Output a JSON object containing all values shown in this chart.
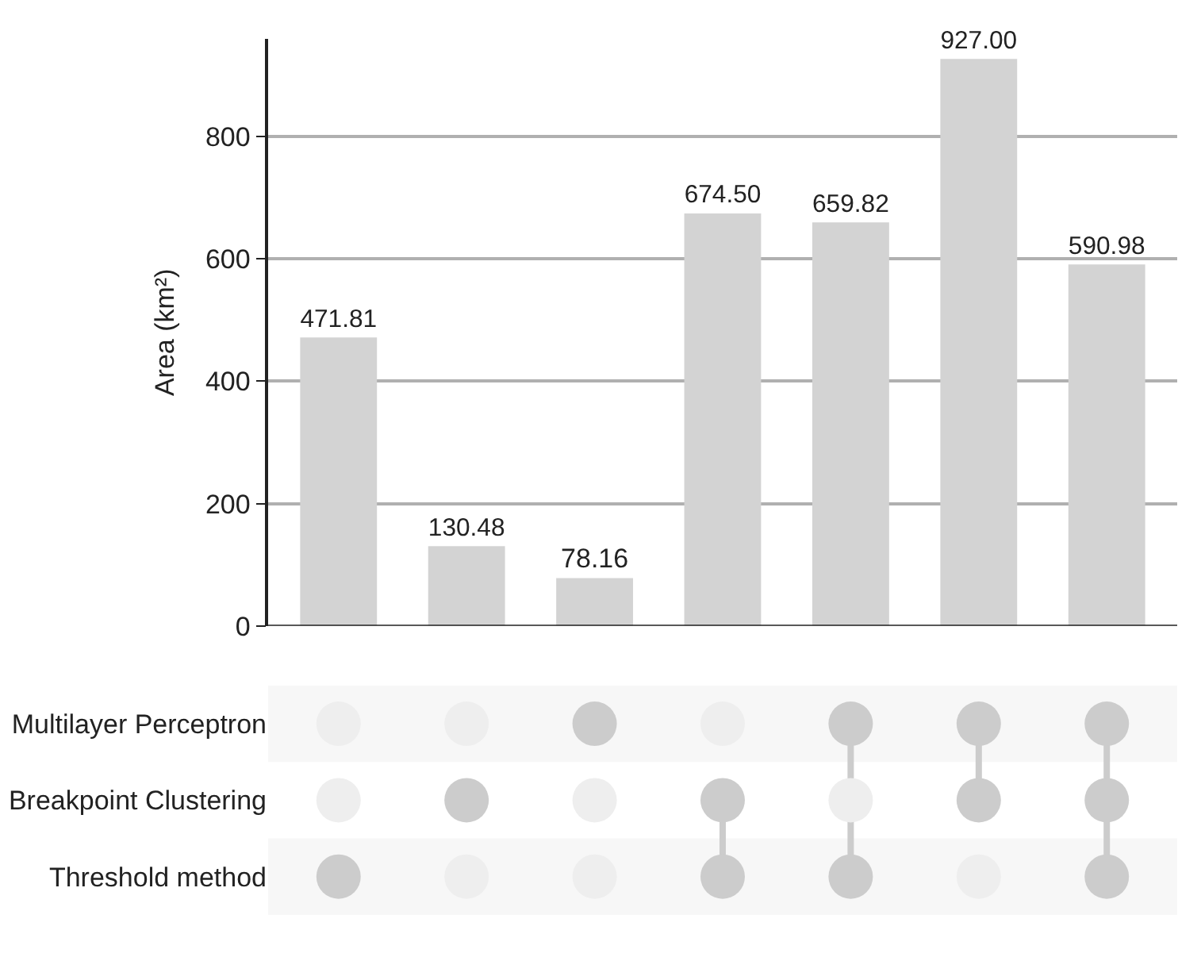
{
  "chart_data": [
    {
      "type": "bar",
      "ylabel": "Area (km²)",
      "categories": [
        null,
        null,
        null,
        null,
        null,
        null,
        null
      ],
      "values": [
        471.81,
        130.48,
        78.16,
        674.5,
        659.82,
        927.0,
        590.98
      ],
      "value_labels": [
        "471.81",
        "130.48",
        "78.16",
        "674.50",
        "659.82",
        "927.00",
        "590.98"
      ],
      "color": "#d3d3d3",
      "ylim": [
        0,
        960
      ],
      "yticks": [
        0,
        200,
        400,
        600,
        800
      ],
      "grid": "y",
      "tick_labels": "y"
    },
    {
      "type": "other",
      "categories": [
        null,
        null,
        null,
        null,
        null,
        null,
        null
      ],
      "y_categories": [
        "Multilayer Perceptron",
        "Breakpoint Clustering",
        "Threshold method"
      ],
      "cells": [
        [
          false,
          false,
          true,
          false,
          true,
          true,
          true
        ],
        [
          false,
          true,
          false,
          true,
          false,
          true,
          true
        ],
        [
          true,
          false,
          false,
          true,
          true,
          false,
          true
        ]
      ],
      "colors": [
        "#eeeeee",
        "#cccccc"
      ]
    }
  ]
}
